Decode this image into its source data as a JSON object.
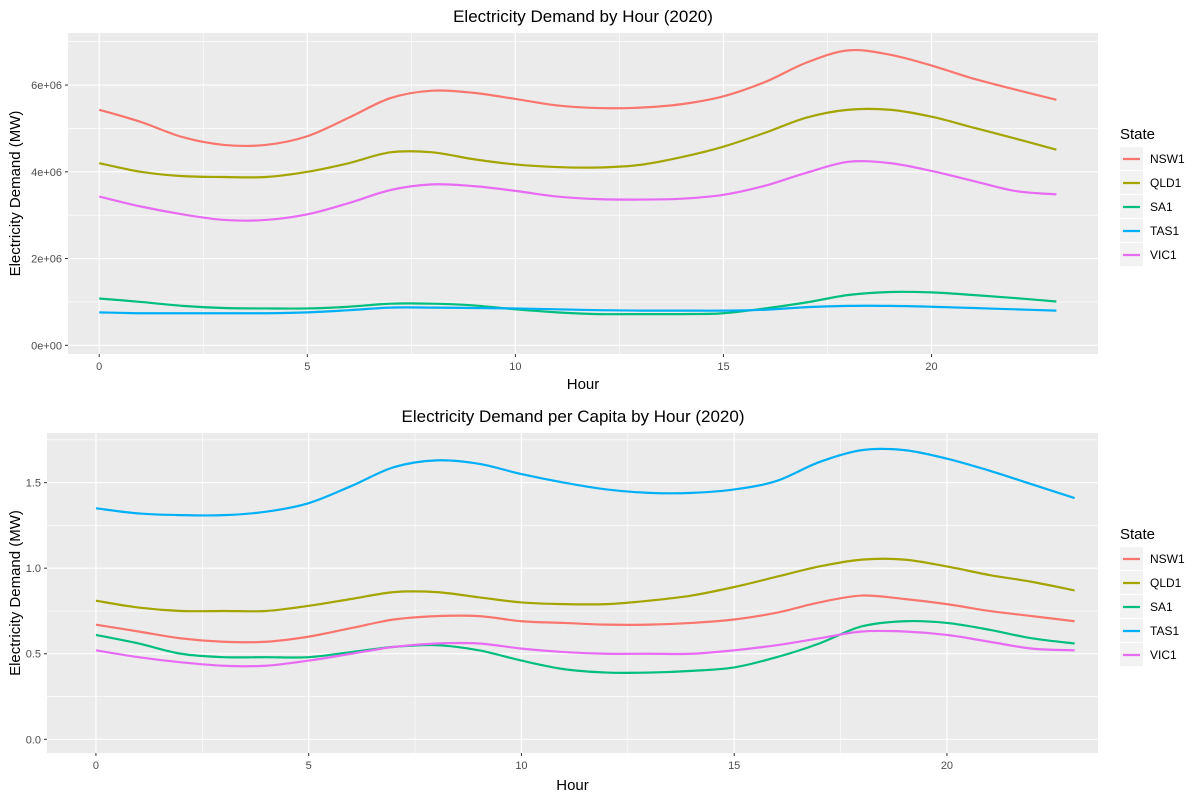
{
  "colors": {
    "panel_bg": "#EBEBEB",
    "grid_major": "#FFFFFF",
    "tick_text": "#4D4D4D",
    "text": "#000000",
    "NSW1": "#F8766D",
    "QLD1": "#A3A500",
    "SA1": "#00BF7D",
    "TAS1": "#00B0F6",
    "VIC1": "#E76BF3"
  },
  "chart_data": [
    {
      "type": "line",
      "title": "Electricity Demand by Hour (2020)",
      "xlabel": "Hour",
      "ylabel": "Electricity Demand (MW)",
      "xlim": [
        -0.75,
        24.0
      ],
      "ylim": [
        -200000,
        7200000
      ],
      "xticks": [
        0,
        5,
        10,
        15,
        20
      ],
      "xtick_labels": [
        "0",
        "5",
        "10",
        "15",
        "20"
      ],
      "yticks": [
        0,
        2000000,
        4000000,
        6000000
      ],
      "ytick_labels": [
        "0e+00",
        "2e+06",
        "4e+06",
        "6e+06"
      ],
      "grid": true,
      "legend": {
        "title": "State",
        "position": "right"
      },
      "x": [
        0,
        1,
        2,
        3,
        4,
        5,
        6,
        7,
        8,
        9,
        10,
        11,
        12,
        13,
        14,
        15,
        16,
        17,
        18,
        19,
        20,
        21,
        22,
        23
      ],
      "series": [
        {
          "name": "NSW1",
          "values": [
            5430000,
            5150000,
            4800000,
            4620000,
            4620000,
            4820000,
            5250000,
            5700000,
            5870000,
            5820000,
            5680000,
            5530000,
            5470000,
            5480000,
            5560000,
            5740000,
            6070000,
            6520000,
            6800000,
            6700000,
            6450000,
            6150000,
            5900000,
            5660000
          ]
        },
        {
          "name": "QLD1",
          "values": [
            4200000,
            4000000,
            3900000,
            3880000,
            3880000,
            4000000,
            4200000,
            4450000,
            4450000,
            4290000,
            4170000,
            4110000,
            4100000,
            4160000,
            4340000,
            4580000,
            4900000,
            5250000,
            5430000,
            5430000,
            5270000,
            5020000,
            4770000,
            4510000
          ]
        },
        {
          "name": "SA1",
          "values": [
            1080000,
            1000000,
            910000,
            860000,
            850000,
            850000,
            890000,
            960000,
            960000,
            920000,
            830000,
            760000,
            720000,
            720000,
            720000,
            740000,
            850000,
            990000,
            1160000,
            1230000,
            1220000,
            1160000,
            1090000,
            1010000
          ]
        },
        {
          "name": "TAS1",
          "values": [
            760000,
            740000,
            740000,
            740000,
            740000,
            760000,
            810000,
            870000,
            870000,
            860000,
            850000,
            830000,
            810000,
            800000,
            800000,
            800000,
            820000,
            880000,
            910000,
            910000,
            890000,
            860000,
            830000,
            800000
          ]
        },
        {
          "name": "VIC1",
          "values": [
            3430000,
            3200000,
            3020000,
            2890000,
            2890000,
            3020000,
            3280000,
            3580000,
            3710000,
            3670000,
            3560000,
            3430000,
            3370000,
            3360000,
            3380000,
            3470000,
            3680000,
            3980000,
            4230000,
            4200000,
            4020000,
            3790000,
            3560000,
            3480000
          ]
        }
      ]
    },
    {
      "type": "line",
      "title": "Electricity Demand per Capita by Hour (2020)",
      "xlabel": "Hour",
      "ylabel": "Electricity Demand (MW)",
      "xlim": [
        -1.15,
        23.55
      ],
      "ylim": [
        -0.08,
        1.79
      ],
      "xticks": [
        0,
        5,
        10,
        15,
        20
      ],
      "xtick_labels": [
        "0",
        "5",
        "10",
        "15",
        "20"
      ],
      "yticks": [
        0.0,
        0.5,
        1.0,
        1.5
      ],
      "ytick_labels": [
        "0.0",
        "0.5",
        "1.0",
        "1.5"
      ],
      "grid": true,
      "legend": {
        "title": "State",
        "position": "right"
      },
      "x": [
        0,
        1,
        2,
        3,
        4,
        5,
        6,
        7,
        8,
        9,
        10,
        11,
        12,
        13,
        14,
        15,
        16,
        17,
        18,
        19,
        20,
        21,
        22,
        23
      ],
      "series": [
        {
          "name": "NSW1",
          "values": [
            0.67,
            0.63,
            0.59,
            0.57,
            0.57,
            0.6,
            0.65,
            0.7,
            0.72,
            0.72,
            0.69,
            0.68,
            0.67,
            0.67,
            0.68,
            0.7,
            0.74,
            0.8,
            0.84,
            0.82,
            0.79,
            0.75,
            0.72,
            0.69
          ]
        },
        {
          "name": "QLD1",
          "values": [
            0.81,
            0.77,
            0.75,
            0.75,
            0.75,
            0.78,
            0.82,
            0.86,
            0.86,
            0.83,
            0.8,
            0.79,
            0.79,
            0.81,
            0.84,
            0.89,
            0.95,
            1.01,
            1.05,
            1.05,
            1.01,
            0.96,
            0.92,
            0.87
          ]
        },
        {
          "name": "SA1",
          "values": [
            0.61,
            0.56,
            0.5,
            0.48,
            0.48,
            0.48,
            0.51,
            0.54,
            0.55,
            0.52,
            0.46,
            0.41,
            0.39,
            0.39,
            0.4,
            0.42,
            0.48,
            0.56,
            0.66,
            0.69,
            0.68,
            0.64,
            0.59,
            0.56
          ]
        },
        {
          "name": "TAS1",
          "values": [
            1.35,
            1.32,
            1.31,
            1.31,
            1.33,
            1.38,
            1.48,
            1.59,
            1.63,
            1.61,
            1.55,
            1.5,
            1.46,
            1.44,
            1.44,
            1.46,
            1.51,
            1.62,
            1.69,
            1.69,
            1.64,
            1.57,
            1.49,
            1.41
          ]
        },
        {
          "name": "VIC1",
          "values": [
            0.52,
            0.48,
            0.45,
            0.43,
            0.43,
            0.46,
            0.5,
            0.54,
            0.56,
            0.56,
            0.53,
            0.51,
            0.5,
            0.5,
            0.5,
            0.52,
            0.55,
            0.59,
            0.63,
            0.63,
            0.61,
            0.57,
            0.53,
            0.52
          ]
        }
      ]
    }
  ]
}
